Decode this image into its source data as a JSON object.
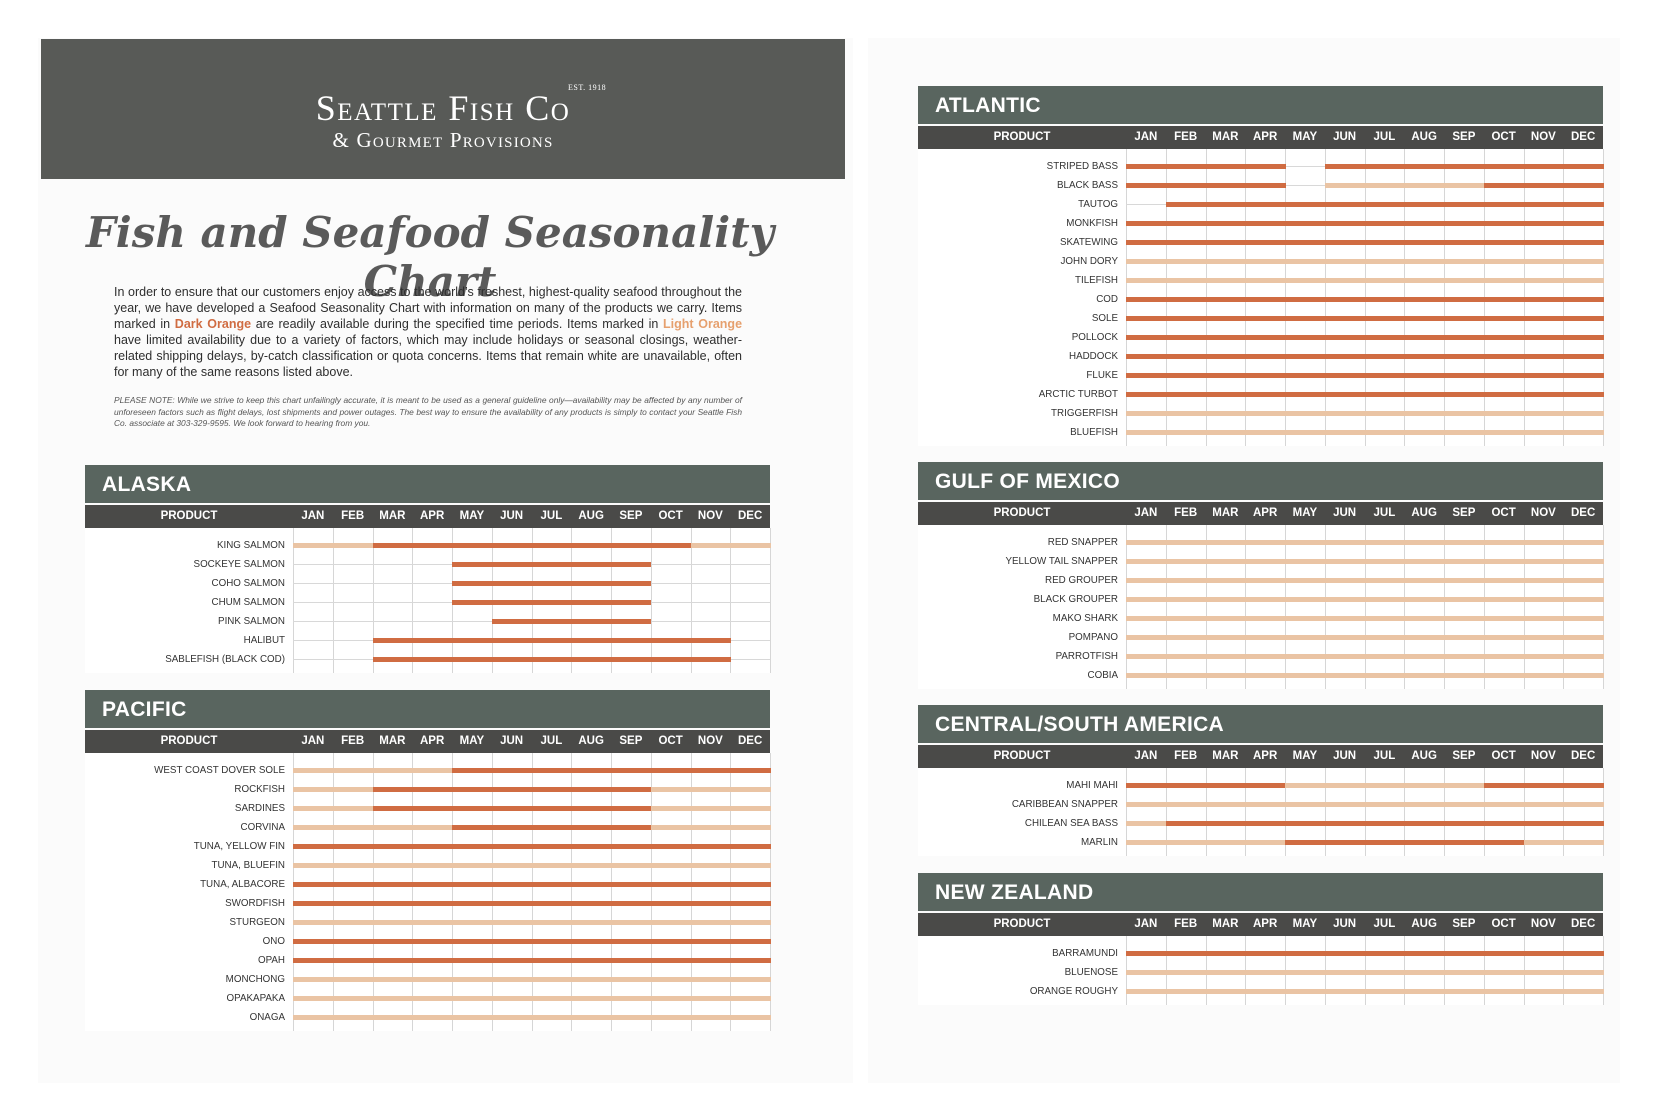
{
  "header": {
    "est": "EST. 1918",
    "company": "Seattle Fish Co",
    "subtitle": "& Gourmet Provisions"
  },
  "title": "Fish and Seafood Seasonality Chart",
  "intro": {
    "p1": "In order to ensure that our customers enjoy access to the world’s freshest, highest-quality seafood throughout the year, we have developed a Seafood Seasonality Chart with information on many of the products we carry. Items marked in ",
    "dark": "Dark Orange",
    "p2": " are readily available during the specified time periods. Items marked in ",
    "light": "Light Orange",
    "p3": " have limited availability due to a variety of factors, which may include holidays or seasonal closings, weather-related shipping delays, by-catch classification or quota concerns. Items that remain white are unavailable, often for many of the same reasons listed above."
  },
  "note": "PLEASE NOTE: While we strive to keep this chart unfailingly accurate, it is meant to be used as a general guideline only—availability may be affected by any number of unforeseen factors such as flight delays, lost shipments and power outages. The best way to ensure the availability of any products is simply to contact your Seattle Fish Co. associate at 303-329-9595. We look forward to hearing from you.",
  "legend": {
    "D": "Dark Orange",
    "L": "Light Orange",
    "N": "unavailable"
  },
  "colors": {
    "D": "#d06c42",
    "L": "#eac4a4",
    "header": "#59655f",
    "subheader": "#4a4a48",
    "brand": "#585a57"
  },
  "product_label": "PRODUCT",
  "months": [
    "JAN",
    "FEB",
    "MAR",
    "APR",
    "MAY",
    "JUN",
    "JUL",
    "AUG",
    "SEP",
    "OCT",
    "NOV",
    "DEC"
  ],
  "regions": [
    {
      "id": "alaska",
      "name": "ALASKA",
      "items": [
        {
          "name": "KING SALMON",
          "avail": "LLDDDDDDDDLL"
        },
        {
          "name": "SOCKEYE SALMON",
          "avail": "NNNNDDDDDNNN"
        },
        {
          "name": "COHO SALMON",
          "avail": "NNNNDDDDDNNN"
        },
        {
          "name": "CHUM SALMON",
          "avail": "NNNNDDDDDNNN"
        },
        {
          "name": "PINK SALMON",
          "avail": "NNNNNDDDDNNN"
        },
        {
          "name": "HALIBUT",
          "avail": "NNDDDDDDDDDN"
        },
        {
          "name": "SABLEFISH (BLACK COD)",
          "avail": "NNDDDDDDDDDN"
        }
      ]
    },
    {
      "id": "pacific",
      "name": "PACIFIC",
      "items": [
        {
          "name": "WEST COAST DOVER SOLE",
          "avail": "LLLLDDDDDDDD"
        },
        {
          "name": "ROCKFISH",
          "avail": "LLDDDDDDDLLL"
        },
        {
          "name": "SARDINES",
          "avail": "LLDDDDDDDLLL"
        },
        {
          "name": "CORVINA",
          "avail": "LLLLDDDDDLLL"
        },
        {
          "name": "TUNA, YELLOW FIN",
          "avail": "DDDDDDDDDDDD"
        },
        {
          "name": "TUNA, BLUEFIN",
          "avail": "LLLLLLLLLLLL"
        },
        {
          "name": "TUNA, ALBACORE",
          "avail": "DDDDDDDDDDDD"
        },
        {
          "name": "SWORDFISH",
          "avail": "DDDDDDDDDDDD"
        },
        {
          "name": "STURGEON",
          "avail": "LLLLLLLLLLLL"
        },
        {
          "name": "ONO",
          "avail": "DDDDDDDDDDDD"
        },
        {
          "name": "OPAH",
          "avail": "DDDDDDDDDDDD"
        },
        {
          "name": "MONCHONG",
          "avail": "LLLLLLLLLLLL"
        },
        {
          "name": "OPAKAPAKA",
          "avail": "LLLLLLLLLLLL"
        },
        {
          "name": "ONAGA",
          "avail": "LLLLLLLLLLLL"
        }
      ]
    },
    {
      "id": "atlantic",
      "name": "ATLANTIC",
      "items": [
        {
          "name": "STRIPED BASS",
          "avail": "DDDDNDDDDDDD"
        },
        {
          "name": "BLACK BASS",
          "avail": "DDDDNLLLLDDD"
        },
        {
          "name": "TAUTOG",
          "avail": "NDDDDDDDDDDD"
        },
        {
          "name": "MONKFISH",
          "avail": "DDDDDDDDDDDD"
        },
        {
          "name": "SKATEWING",
          "avail": "DDDDDDDDDDDD"
        },
        {
          "name": "JOHN DORY",
          "avail": "LLLLLLLLLLLL"
        },
        {
          "name": "TILEFISH",
          "avail": "LLLLLLLLLLLL"
        },
        {
          "name": "COD",
          "avail": "DDDDDDDDDDDD"
        },
        {
          "name": "SOLE",
          "avail": "DDDDDDDDDDDD"
        },
        {
          "name": "POLLOCK",
          "avail": "DDDDDDDDDDDD"
        },
        {
          "name": "HADDOCK",
          "avail": "DDDDDDDDDDDD"
        },
        {
          "name": "FLUKE",
          "avail": "DDDDDDDDDDDD"
        },
        {
          "name": "ARCTIC TURBOT",
          "avail": "DDDDDDDDDDDD"
        },
        {
          "name": "TRIGGERFISH",
          "avail": "LLLLLLLLLLLL"
        },
        {
          "name": "BLUEFISH",
          "avail": "LLLLLLLLLLLL"
        }
      ]
    },
    {
      "id": "gulf",
      "name": "GULF OF MEXICO",
      "items": [
        {
          "name": "RED SNAPPER",
          "avail": "LLLLLLLLLLLL"
        },
        {
          "name": "YELLOW TAIL SNAPPER",
          "avail": "LLLLLLLLLLLL"
        },
        {
          "name": "RED GROUPER",
          "avail": "LLLLLLLLLLLL"
        },
        {
          "name": "BLACK GROUPER",
          "avail": "LLLLLLLLLLLL"
        },
        {
          "name": "MAKO SHARK",
          "avail": "LLLLLLLLLLLL"
        },
        {
          "name": "POMPANO",
          "avail": "LLLLLLLLLLLL"
        },
        {
          "name": "PARROTFISH",
          "avail": "LLLLLLLLLLLL"
        },
        {
          "name": "COBIA",
          "avail": "LLLLLLLLLLLL"
        }
      ]
    },
    {
      "id": "central",
      "name": "CENTRAL/SOUTH AMERICA",
      "items": [
        {
          "name": "MAHI MAHI",
          "avail": "DDDDLLLLLDDD"
        },
        {
          "name": "CARIBBEAN SNAPPER",
          "avail": "LLLLLLLLLLLL"
        },
        {
          "name": "CHILEAN SEA BASS",
          "avail": "LDDDDDDDDDDD"
        },
        {
          "name": "MARLIN",
          "avail": "LLLLDDDDDDLL"
        }
      ]
    },
    {
      "id": "nz",
      "name": "NEW ZEALAND",
      "items": [
        {
          "name": "BARRAMUNDI",
          "avail": "DDDDDDDDDDDD"
        },
        {
          "name": "BLUENOSE",
          "avail": "LLLLLLLLLLLL"
        },
        {
          "name": "ORANGE ROUGHY",
          "avail": "LLLLLLLLLLLL"
        }
      ]
    }
  ]
}
